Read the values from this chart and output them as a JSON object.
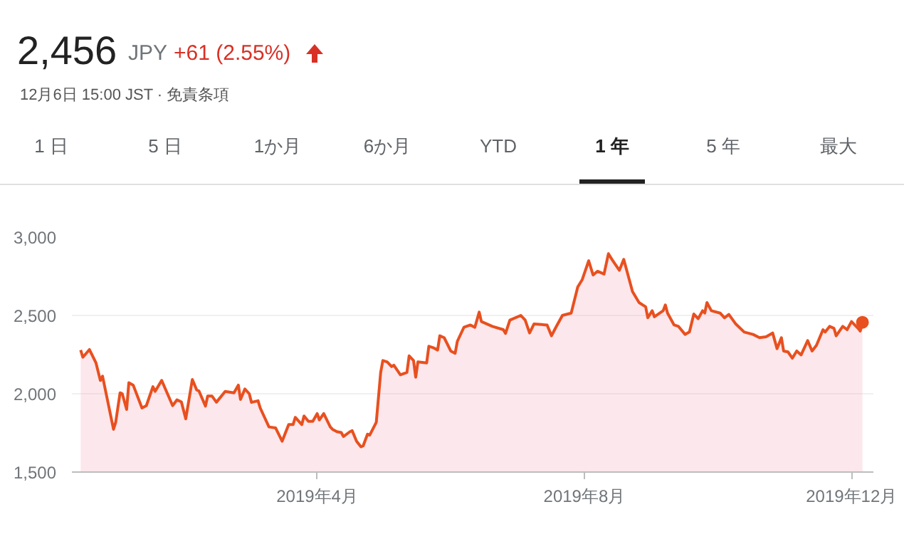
{
  "chart_data": {
    "type": "area",
    "title": "2,456",
    "subtitle": "12月6日 15:00 JST · 免責条項",
    "annotations": [
      "JPY",
      "+61 (2.55%)",
      "1 日",
      "5 日",
      "1か月",
      "6か月",
      "YTD",
      "1 年",
      "5 年",
      "最大"
    ],
    "x": [
      "2018-12-14",
      "2018-12-15",
      "2018-12-18",
      "2018-12-21",
      "2018-12-23",
      "2018-12-24",
      "2018-12-29",
      "2018-12-30",
      "2019-01-01",
      "2019-01-02",
      "2019-01-04",
      "2019-01-05",
      "2019-01-07",
      "2019-01-11",
      "2019-01-13",
      "2019-01-16",
      "2019-01-17",
      "2019-01-20",
      "2019-01-25",
      "2019-01-27",
      "2019-01-29",
      "2019-01-31",
      "2019-02-03",
      "2019-02-05",
      "2019-02-06",
      "2019-02-09",
      "2019-02-10",
      "2019-02-12",
      "2019-02-14",
      "2019-02-18",
      "2019-02-22",
      "2019-02-24",
      "2019-02-25",
      "2019-02-27",
      "2019-03-01",
      "2019-03-02",
      "2019-03-05",
      "2019-03-06",
      "2019-03-10",
      "2019-03-13",
      "2019-03-16",
      "2019-03-19",
      "2019-03-21",
      "2019-03-22",
      "2019-03-25",
      "2019-03-26",
      "2019-03-28",
      "2019-03-30",
      "2019-04-01",
      "2019-04-02",
      "2019-04-04",
      "2019-04-07",
      "2019-04-08",
      "2019-04-10",
      "2019-04-12",
      "2019-04-13",
      "2019-04-16",
      "2019-04-17",
      "2019-04-19",
      "2019-04-21",
      "2019-04-22",
      "2019-04-24",
      "2019-04-25",
      "2019-04-28",
      "2019-04-30",
      "2019-05-01",
      "2019-05-03",
      "2019-05-05",
      "2019-05-06",
      "2019-05-09",
      "2019-05-12",
      "2019-05-13",
      "2019-05-15",
      "2019-05-16",
      "2019-05-17",
      "2019-05-21",
      "2019-05-22",
      "2019-05-24",
      "2019-05-26",
      "2019-05-27",
      "2019-05-29",
      "2019-06-01",
      "2019-06-03",
      "2019-06-04",
      "2019-06-07",
      "2019-06-10",
      "2019-06-12",
      "2019-06-14",
      "2019-06-15",
      "2019-06-20",
      "2019-06-25",
      "2019-06-26",
      "2019-06-28",
      "2019-07-03",
      "2019-07-05",
      "2019-07-07",
      "2019-07-09",
      "2019-07-15",
      "2019-07-17",
      "2019-07-19",
      "2019-07-22",
      "2019-07-26",
      "2019-07-29",
      "2019-07-31",
      "2019-08-03",
      "2019-08-05",
      "2019-08-07",
      "2019-08-10",
      "2019-08-12",
      "2019-08-14",
      "2019-08-17",
      "2019-08-19",
      "2019-08-23",
      "2019-08-26",
      "2019-08-29",
      "2019-08-30",
      "2019-09-01",
      "2019-09-02",
      "2019-09-06",
      "2019-09-07",
      "2019-09-08",
      "2019-09-11",
      "2019-09-13",
      "2019-09-16",
      "2019-09-18",
      "2019-09-20",
      "2019-09-22",
      "2019-09-24",
      "2019-09-25",
      "2019-09-26",
      "2019-09-28",
      "2019-10-02",
      "2019-10-04",
      "2019-10-06",
      "2019-10-09",
      "2019-10-13",
      "2019-10-17",
      "2019-10-20",
      "2019-10-23",
      "2019-10-26",
      "2019-10-28",
      "2019-10-30",
      "2019-10-31",
      "2019-11-02",
      "2019-11-04",
      "2019-11-06",
      "2019-11-08",
      "2019-11-11",
      "2019-11-13",
      "2019-11-15",
      "2019-11-18",
      "2019-11-19",
      "2019-11-21",
      "2019-11-23",
      "2019-11-24",
      "2019-11-27",
      "2019-11-29",
      "2019-12-01",
      "2019-12-04",
      "2019-12-05",
      "2019-12-06"
    ],
    "series": [
      {
        "color": "#e8501f",
        "values": [
          2279,
          2233,
          2282,
          2197,
          2085,
          2112,
          1773,
          1818,
          2006,
          2000,
          1900,
          2070,
          2055,
          1909,
          1924,
          2045,
          2015,
          2085,
          1924,
          1961,
          1948,
          1840,
          2091,
          2024,
          2018,
          1921,
          1985,
          1985,
          1946,
          2015,
          2006,
          2055,
          1964,
          2030,
          2000,
          1945,
          1955,
          1909,
          1788,
          1782,
          1697,
          1803,
          1803,
          1849,
          1803,
          1858,
          1824,
          1824,
          1873,
          1833,
          1873,
          1788,
          1773,
          1758,
          1752,
          1727,
          1758,
          1764,
          1697,
          1661,
          1667,
          1742,
          1736,
          1818,
          2136,
          2212,
          2203,
          2173,
          2182,
          2121,
          2136,
          2242,
          2212,
          2106,
          2203,
          2197,
          2303,
          2294,
          2279,
          2370,
          2358,
          2273,
          2258,
          2334,
          2424,
          2439,
          2424,
          2521,
          2461,
          2430,
          2409,
          2385,
          2470,
          2500,
          2470,
          2388,
          2445,
          2439,
          2370,
          2424,
          2500,
          2515,
          2682,
          2727,
          2849,
          2758,
          2782,
          2764,
          2894,
          2849,
          2788,
          2858,
          2652,
          2582,
          2555,
          2485,
          2530,
          2491,
          2530,
          2567,
          2515,
          2439,
          2430,
          2379,
          2394,
          2509,
          2479,
          2530,
          2515,
          2582,
          2530,
          2515,
          2485,
          2506,
          2448,
          2394,
          2379,
          2358,
          2364,
          2388,
          2288,
          2358,
          2273,
          2267,
          2227,
          2273,
          2248,
          2339,
          2273,
          2309,
          2409,
          2394,
          2430,
          2418,
          2370,
          2430,
          2409,
          2461,
          2418,
          2400,
          2456
        ]
      }
    ],
    "xlim": [
      "2018-12-10",
      "2019-12-11"
    ],
    "xticks": [
      {
        "value": "2019-04-01",
        "label": "2019年4月"
      },
      {
        "value": "2019-08-01",
        "label": "2019年8月"
      },
      {
        "value": "2019-12-01",
        "label": "2019年12月"
      }
    ],
    "ylim": [
      1500,
      3000
    ],
    "yticks": [
      {
        "value": 1500,
        "label": "1,500"
      },
      {
        "value": 2000,
        "label": "2,000"
      },
      {
        "value": 2500,
        "label": "2,500"
      },
      {
        "value": 3000,
        "label": "3,000"
      }
    ],
    "grid": "y"
  }
}
